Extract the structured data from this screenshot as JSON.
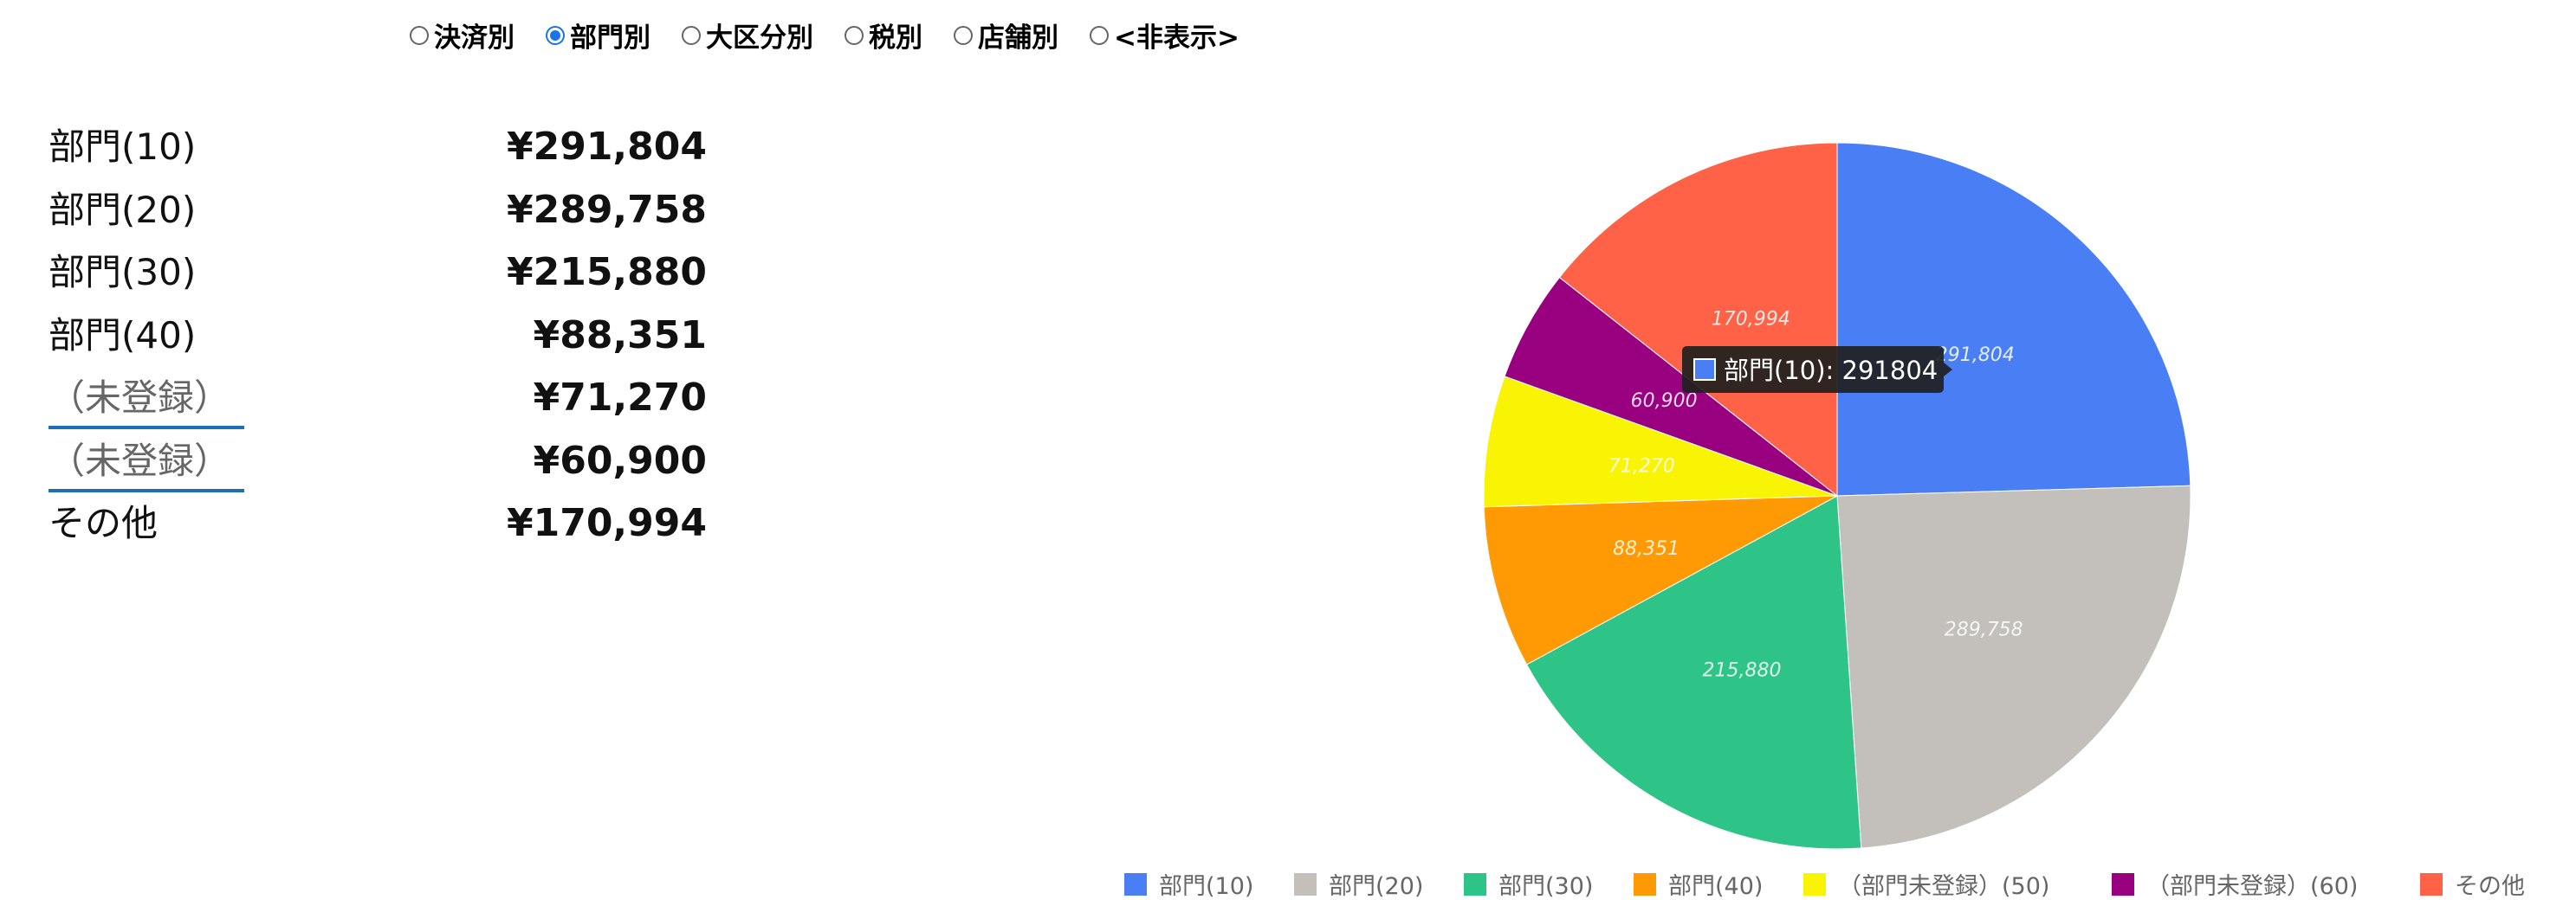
{
  "view_options": [
    {
      "label": "決済別",
      "checked": false
    },
    {
      "label": "部門別",
      "checked": true
    },
    {
      "label": "大区分別",
      "checked": false
    },
    {
      "label": "税別",
      "checked": false
    },
    {
      "label": "店舗別",
      "checked": false
    },
    {
      "label": "<非表示>",
      "checked": false
    }
  ],
  "summary": [
    {
      "label": "部門(10)",
      "value": "¥291,804",
      "link": false
    },
    {
      "label": "部門(20)",
      "value": "¥289,758",
      "link": false
    },
    {
      "label": "部門(30)",
      "value": "¥215,880",
      "link": false
    },
    {
      "label": "部門(40)",
      "value": "¥88,351",
      "link": false
    },
    {
      "label": "（未登録）",
      "value": "¥71,270",
      "link": true
    },
    {
      "label": "（未登録）",
      "value": "¥60,900",
      "link": true
    },
    {
      "label": "その他",
      "value": "¥170,994",
      "link": false
    }
  ],
  "colors": {
    "radio_accent": "#1a73e8",
    "link_underline": "#1f6fb8",
    "tooltip_bg": "#1f1f1f"
  },
  "chart_data": {
    "type": "pie",
    "categories": [
      "部門(10)",
      "部門(20)",
      "部門(30)",
      "部門(40)",
      "（部門未登録）(50)",
      "（部門未登録）(60)",
      "その他"
    ],
    "values": [
      291804,
      289758,
      215880,
      88351,
      71270,
      60900,
      170994
    ],
    "slice_labels": [
      "291,804",
      "289,758",
      "215,880",
      "88,351",
      "71,270",
      "60,900",
      "170,994"
    ],
    "colors": [
      "#4a7ef5",
      "#c3c0bb",
      "#2ec487",
      "#ff9a05",
      "#f9f404",
      "#990080",
      "#ff6247"
    ],
    "legend_position": "bottom",
    "tooltip": {
      "category_index": 0,
      "text": "部門(10): 291804"
    }
  }
}
